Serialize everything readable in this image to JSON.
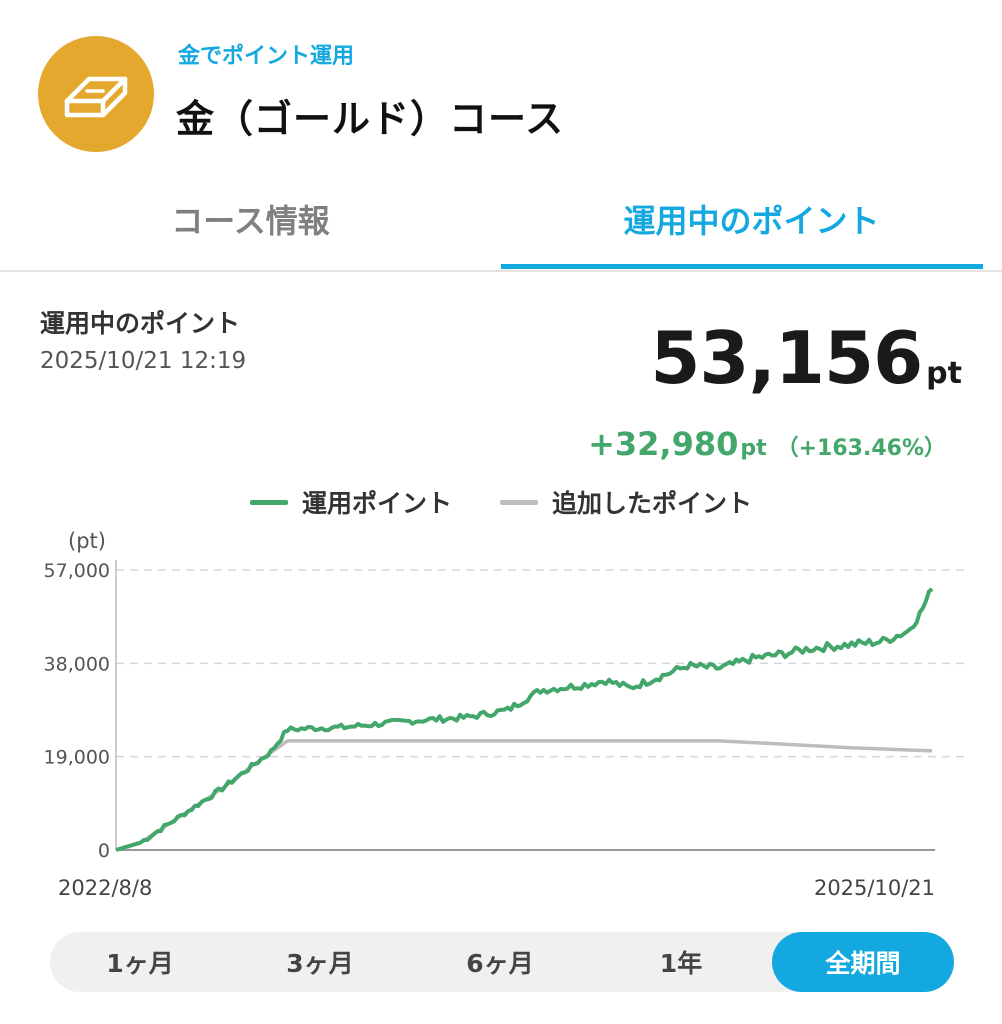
{
  "header": {
    "subtitle": "金でポイント運用",
    "title": "金（ゴールド）コース",
    "logo_icon": "gold-bar-icon",
    "logo_color": "#e5a82e",
    "accent_color": "#14a8e0"
  },
  "tabs": [
    {
      "label": "コース情報",
      "active": false
    },
    {
      "label": "運用中のポイント",
      "active": true
    }
  ],
  "summary": {
    "label": "運用中のポイント",
    "datetime": "2025/10/21 12:19",
    "value": "53,156",
    "unit": "pt",
    "gain": "+32,980",
    "gain_unit": "pt",
    "gain_pct": "（+163.46%）",
    "gain_color": "#43a66a"
  },
  "chart_data": {
    "type": "line",
    "ylabel": "(pt)",
    "ylim": [
      0,
      57000
    ],
    "yticks": [
      "57,000",
      "38,000",
      "19,000",
      "0"
    ],
    "x_start_label": "2022/8/8",
    "x_end_label": "2025/10/21",
    "grid": true,
    "legend_position": "top",
    "series": [
      {
        "name": "運用ポイント",
        "color": "#43a66a",
        "points": [
          [
            0,
            0
          ],
          [
            0.03,
            1500
          ],
          [
            0.08,
            7000
          ],
          [
            0.13,
            12500
          ],
          [
            0.17,
            17500
          ],
          [
            0.19,
            20000
          ],
          [
            0.21,
            24500
          ],
          [
            0.24,
            24800
          ],
          [
            0.28,
            25000
          ],
          [
            0.33,
            25800
          ],
          [
            0.38,
            26500
          ],
          [
            0.43,
            27000
          ],
          [
            0.48,
            28500
          ],
          [
            0.52,
            32500
          ],
          [
            0.57,
            33500
          ],
          [
            0.6,
            34500
          ],
          [
            0.63,
            33000
          ],
          [
            0.67,
            35500
          ],
          [
            0.7,
            37500
          ],
          [
            0.74,
            37000
          ],
          [
            0.78,
            39000
          ],
          [
            0.82,
            40000
          ],
          [
            0.85,
            41000
          ],
          [
            0.88,
            41500
          ],
          [
            0.91,
            42000
          ],
          [
            0.94,
            42500
          ],
          [
            0.97,
            44500
          ],
          [
            0.985,
            48000
          ],
          [
            1.0,
            53156
          ]
        ]
      },
      {
        "name": "追加したポイント",
        "color": "#bdbdbd",
        "points": [
          [
            0,
            0
          ],
          [
            0.03,
            1500
          ],
          [
            0.08,
            7000
          ],
          [
            0.13,
            12500
          ],
          [
            0.17,
            17500
          ],
          [
            0.21,
            22200
          ],
          [
            0.74,
            22200
          ],
          [
            0.8,
            21700
          ],
          [
            0.9,
            20800
          ],
          [
            1.0,
            20176
          ]
        ]
      }
    ]
  },
  "range_selector": {
    "options": [
      "1ヶ月",
      "3ヶ月",
      "6ヶ月",
      "1年",
      "全期間"
    ],
    "selected": "全期間"
  }
}
